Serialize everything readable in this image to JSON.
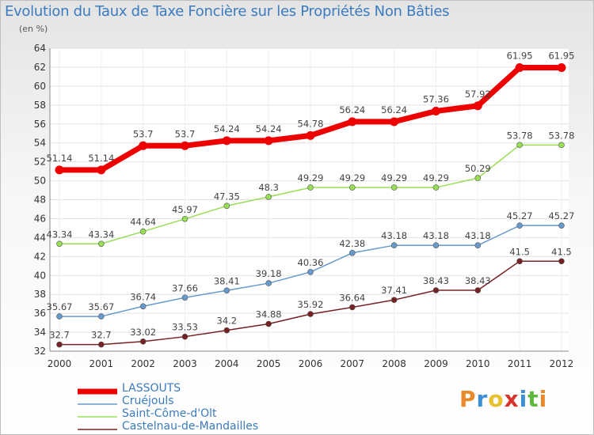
{
  "title": "Evolution du Taux de Taxe Foncière sur les Propriétés Non Bâties",
  "subtitle": "(en %)",
  "logo": [
    "P",
    "r",
    "o",
    "x",
    "i",
    "t",
    "i"
  ],
  "logo_colors": [
    "#e8892b",
    "#3b8fd6",
    "#e8c02b",
    "#d6342b",
    "#3b8fd6",
    "#5fb83b",
    "#e8892b"
  ],
  "chart_data": {
    "type": "line",
    "title": "Evolution du Taux de Taxe Foncière sur les Propriétés Non Bâties",
    "ylabel": "(en %)",
    "xlabel": "",
    "x": [
      "2000",
      "2001",
      "2002",
      "2003",
      "2004",
      "2005",
      "2006",
      "2007",
      "2008",
      "2009",
      "2010",
      "2011",
      "2012"
    ],
    "ylim": [
      32,
      64
    ],
    "yticks": [
      32,
      34,
      36,
      38,
      40,
      42,
      44,
      46,
      48,
      50,
      52,
      54,
      56,
      58,
      60,
      62,
      64
    ],
    "grid": true,
    "legend": "bottom-left",
    "series": [
      {
        "name": "LASSOUTS",
        "color": "#ee0000",
        "values": [
          51.14,
          51.14,
          53.7,
          53.7,
          54.24,
          54.24,
          54.78,
          56.24,
          56.24,
          57.36,
          57.92,
          61.95,
          61.95
        ],
        "labels": [
          "51.14",
          "51.14",
          "53.7",
          "53.7",
          "54.24",
          "54.24",
          "54.78",
          "56.24",
          "56.24",
          "57.36",
          "57.92",
          "61.95",
          "61.95"
        ]
      },
      {
        "name": "Cruéjouls",
        "color": "#6699cc",
        "values": [
          35.67,
          35.67,
          36.74,
          37.66,
          38.41,
          39.18,
          40.36,
          42.38,
          43.18,
          43.18,
          43.18,
          45.27,
          45.27
        ],
        "labels": [
          "35.67",
          "35.67",
          "36.74",
          "37.66",
          "38.41",
          "39.18",
          "40.36",
          "42.38",
          "43.18",
          "43.18",
          "43.18",
          "45.27",
          "45.27"
        ]
      },
      {
        "name": "Saint-Côme-d'Olt",
        "color": "#99dd55",
        "values": [
          43.34,
          43.34,
          44.64,
          45.97,
          47.35,
          48.3,
          49.29,
          49.29,
          49.29,
          49.29,
          50.29,
          53.78,
          53.78
        ],
        "labels": [
          "43.34",
          "43.34",
          "44.64",
          "45.97",
          "47.35",
          "48.3",
          "49.29",
          "49.29",
          "49.29",
          "49.29",
          "50.29",
          "53.78",
          "53.78"
        ]
      },
      {
        "name": "Castelnau-de-Mandailles",
        "color": "#772222",
        "values": [
          32.7,
          32.7,
          33.02,
          33.53,
          34.2,
          34.88,
          35.92,
          36.64,
          37.41,
          38.43,
          38.43,
          41.5,
          41.5
        ],
        "labels": [
          "32.7",
          "32.7",
          "33.02",
          "33.53",
          "34.2",
          "34.88",
          "35.92",
          "36.64",
          "37.41",
          "38.43",
          "38.43",
          "41.5",
          "41.5"
        ]
      }
    ]
  }
}
